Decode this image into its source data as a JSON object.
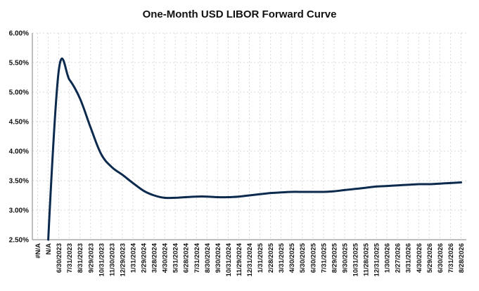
{
  "chart_data": {
    "type": "line",
    "title": "One-Month USD LIBOR Forward Curve",
    "xlabel": "",
    "ylabel": "",
    "ylim": [
      2.5,
      6.0
    ],
    "grid": true,
    "legend": "none",
    "colors": {
      "line": "#0c2a4e",
      "grid": "#d9d9d9",
      "axis": "#7f7f7f"
    },
    "yticks": [
      "2.50%",
      "3.00%",
      "3.50%",
      "4.00%",
      "4.50%",
      "5.00%",
      "5.50%",
      "6.00%"
    ],
    "categories": [
      "#N/A",
      "N/A",
      "6/30/2023",
      "7/31/2023",
      "8/31/2023",
      "9/29/2023",
      "10/31/2023",
      "11/30/2023",
      "12/29/2023",
      "1/31/2024",
      "2/29/2024",
      "3/28/2024",
      "4/30/2024",
      "5/31/2024",
      "6/28/2024",
      "7/31/2024",
      "8/30/2024",
      "9/30/2024",
      "10/31/2024",
      "11/29/2024",
      "12/31/2024",
      "1/31/2025",
      "2/28/2025",
      "3/31/2025",
      "4/30/2025",
      "5/30/2025",
      "6/30/2025",
      "7/31/2025",
      "8/29/2025",
      "9/30/2025",
      "10/31/2025",
      "11/28/2025",
      "12/31/2025",
      "1/30/2026",
      "2/27/2026",
      "3/31/2026",
      "4/30/2026",
      "5/29/2026",
      "6/30/2026",
      "7/31/2026",
      "8/28/2026"
    ],
    "series": [
      {
        "values": [
          null,
          null,
          5.37,
          5.21,
          4.89,
          4.4,
          3.95,
          3.73,
          3.6,
          3.46,
          3.33,
          3.25,
          3.21,
          3.21,
          3.22,
          3.23,
          3.23,
          3.22,
          3.22,
          3.23,
          3.25,
          3.27,
          3.29,
          3.3,
          3.31,
          3.31,
          3.31,
          3.31,
          3.32,
          3.34,
          3.36,
          3.38,
          3.4,
          3.41,
          3.42,
          3.43,
          3.44,
          3.44,
          3.45,
          3.46,
          3.47
        ]
      }
    ]
  }
}
